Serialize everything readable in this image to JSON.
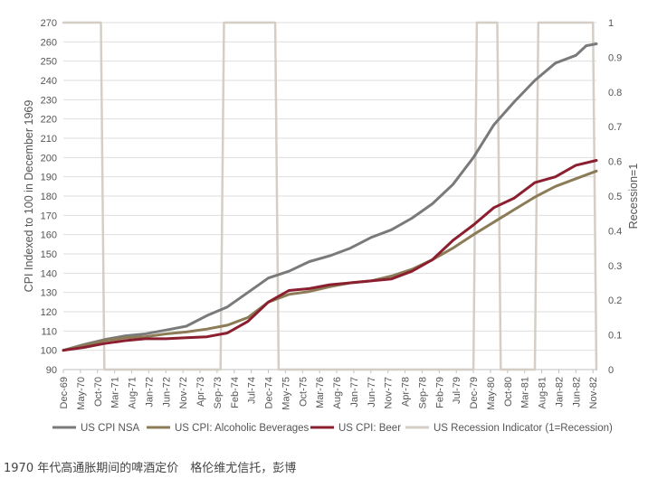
{
  "caption": "1970 年代高通胀期间的啤酒定价　格伦维尤信托，彭博",
  "chart_data": {
    "type": "line",
    "ylabel": "CPI Indexed to 100 in December 1969",
    "y2label": "Recession=1",
    "ylim": [
      90,
      270
    ],
    "y2lim": [
      0,
      1
    ],
    "y_ticks": [
      "270",
      "260",
      "250",
      "240",
      "230",
      "220",
      "210",
      "200",
      "190",
      "180",
      "170",
      "160",
      "150",
      "140",
      "130",
      "120",
      "110",
      "100",
      "90"
    ],
    "y2_ticks": [
      "1",
      "0.9",
      "0.8",
      "0.7",
      "0.6",
      "0.5",
      "0.4",
      "0.3",
      "0.2",
      "0.1",
      "0"
    ],
    "x_ticks": [
      "Dec-69",
      "May-70",
      "Oct-70",
      "Mar-71",
      "Aug-71",
      "Jan-72",
      "Jun-72",
      "Nov-72",
      "Apr-73",
      "Sep-73",
      "Feb-74",
      "Jul-74",
      "Dec-74",
      "May-75",
      "Oct-75",
      "Mar-76",
      "Aug-76",
      "Jan-77",
      "Jun-77",
      "Nov-77",
      "Apr-78",
      "Sep-78",
      "Feb-79",
      "Jul-79",
      "Dec-79",
      "May-80",
      "Oct-80",
      "Mar-81",
      "Aug-81",
      "Jan-82",
      "Jun-82",
      "Nov-82"
    ],
    "x_range": [
      "Dec-69",
      "Dec-82"
    ],
    "grid": "horizontal",
    "legend_position": "bottom",
    "series": [
      {
        "name": "US CPI NSA",
        "color": "#7a7a7a",
        "axis": "left",
        "points": [
          [
            "Dec-69",
            100
          ],
          [
            "Jun-70",
            103
          ],
          [
            "Dec-70",
            105.5
          ],
          [
            "Jun-71",
            107.5
          ],
          [
            "Dec-71",
            108.5
          ],
          [
            "Jun-72",
            110.5
          ],
          [
            "Dec-72",
            112.5
          ],
          [
            "Jun-73",
            118
          ],
          [
            "Dec-73",
            122.5
          ],
          [
            "Jun-74",
            130
          ],
          [
            "Dec-74",
            137.5
          ],
          [
            "Jun-75",
            141
          ],
          [
            "Dec-75",
            146
          ],
          [
            "Jun-76",
            149
          ],
          [
            "Dec-76",
            153
          ],
          [
            "Jun-77",
            158.5
          ],
          [
            "Dec-77",
            162.5
          ],
          [
            "Jun-78",
            168.5
          ],
          [
            "Dec-78",
            176
          ],
          [
            "Jun-79",
            186
          ],
          [
            "Dec-79",
            200
          ],
          [
            "Jun-80",
            217
          ],
          [
            "Dec-80",
            229
          ],
          [
            "Jun-81",
            240
          ],
          [
            "Dec-81",
            249
          ],
          [
            "Jun-82",
            253
          ],
          [
            "Sep-82",
            258
          ],
          [
            "Dec-82",
            259
          ]
        ]
      },
      {
        "name": "US CPI: Alcoholic Beverages",
        "color": "#8b7b57",
        "axis": "left",
        "points": [
          [
            "Dec-69",
            100
          ],
          [
            "Jun-70",
            102.5
          ],
          [
            "Dec-70",
            105
          ],
          [
            "Jun-71",
            106.5
          ],
          [
            "Dec-71",
            107
          ],
          [
            "Jun-72",
            108.5
          ],
          [
            "Dec-72",
            109.5
          ],
          [
            "Jun-73",
            111
          ],
          [
            "Dec-73",
            113
          ],
          [
            "Jun-74",
            117
          ],
          [
            "Dec-74",
            125
          ],
          [
            "Jun-75",
            129
          ],
          [
            "Dec-75",
            130.5
          ],
          [
            "Jun-76",
            133
          ],
          [
            "Dec-76",
            135
          ],
          [
            "Jun-77",
            136
          ],
          [
            "Dec-77",
            138.5
          ],
          [
            "Jun-78",
            142
          ],
          [
            "Dec-78",
            147
          ],
          [
            "Jun-79",
            153
          ],
          [
            "Dec-79",
            160
          ],
          [
            "Jun-80",
            166.5
          ],
          [
            "Dec-80",
            173
          ],
          [
            "Jun-81",
            179.5
          ],
          [
            "Dec-81",
            185
          ],
          [
            "Jun-82",
            189
          ],
          [
            "Dec-82",
            193
          ]
        ]
      },
      {
        "name": "US CPI: Beer",
        "color": "#8b1f2f",
        "axis": "left",
        "points": [
          [
            "Dec-69",
            100
          ],
          [
            "Jun-70",
            101.5
          ],
          [
            "Dec-70",
            103.5
          ],
          [
            "Jun-71",
            105
          ],
          [
            "Dec-71",
            106
          ],
          [
            "Jun-72",
            106
          ],
          [
            "Dec-72",
            106.5
          ],
          [
            "Jun-73",
            107
          ],
          [
            "Dec-73",
            109
          ],
          [
            "Jun-74",
            115
          ],
          [
            "Dec-74",
            125
          ],
          [
            "Jun-75",
            131
          ],
          [
            "Dec-75",
            132
          ],
          [
            "Jun-76",
            134
          ],
          [
            "Dec-76",
            135
          ],
          [
            "Jun-77",
            136
          ],
          [
            "Dec-77",
            137
          ],
          [
            "Jun-78",
            141
          ],
          [
            "Dec-78",
            147
          ],
          [
            "Jun-79",
            157
          ],
          [
            "Dec-79",
            165
          ],
          [
            "Jun-80",
            174
          ],
          [
            "Dec-80",
            179
          ],
          [
            "Jun-81",
            187
          ],
          [
            "Dec-81",
            190
          ],
          [
            "Jun-82",
            196
          ],
          [
            "Dec-82",
            198.5
          ]
        ]
      },
      {
        "name": "US Recession Indicator (1=Recession)",
        "color": "#d4cec6",
        "axis": "right",
        "points": [
          [
            "Dec-69",
            1
          ],
          [
            "Nov-70",
            1
          ],
          [
            "Dec-70",
            0
          ],
          [
            "Oct-73",
            0
          ],
          [
            "Nov-73",
            1
          ],
          [
            "Feb-75",
            1
          ],
          [
            "Mar-75",
            0
          ],
          [
            "Dec-79",
            0
          ],
          [
            "Jan-80",
            1
          ],
          [
            "Jul-80",
            1
          ],
          [
            "Aug-80",
            0
          ],
          [
            "Jun-81",
            0
          ],
          [
            "Jul-81",
            1
          ],
          [
            "Nov-82",
            1
          ],
          [
            "Dec-82",
            0
          ]
        ]
      }
    ]
  }
}
